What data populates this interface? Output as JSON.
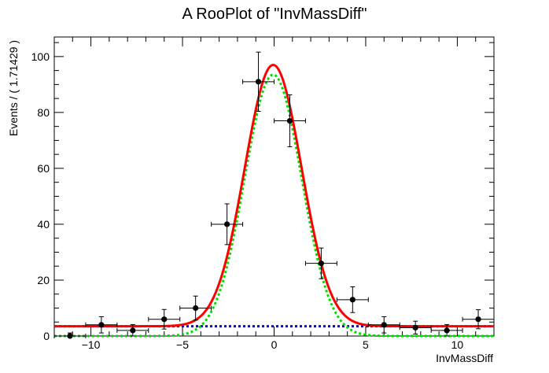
{
  "chart_data": {
    "type": "line",
    "title": "A RooPlot of \"InvMassDiff\"",
    "xlabel": "InvMassDiff",
    "ylabel": "Events / ( 1.71429 )",
    "xlim": [
      -12,
      12
    ],
    "ylim": [
      0,
      107
    ],
    "x_ticks": [
      -10,
      -5,
      0,
      5,
      10
    ],
    "y_ticks": [
      0,
      20,
      40,
      60,
      80,
      100
    ],
    "bin_width": 1.71429,
    "data_points": {
      "x": [
        -11.143,
        -9.429,
        -7.714,
        -6.0,
        -4.286,
        -2.571,
        -0.857,
        0.857,
        2.571,
        4.286,
        6.0,
        7.714,
        9.429,
        11.143
      ],
      "y": [
        0,
        4,
        2,
        6,
        10,
        40,
        91,
        77,
        26,
        13,
        4,
        3,
        2,
        6
      ],
      "err": [
        1.1,
        2.9,
        2.1,
        3.5,
        4.3,
        7.3,
        10.6,
        9.3,
        5.5,
        4.6,
        2.9,
        2.3,
        2.1,
        3.4
      ]
    },
    "background_level": 3.5,
    "signal": {
      "mean": -0.05,
      "sigma": 1.55,
      "amplitude": 93.5
    },
    "series": [
      {
        "color": "#ff0000",
        "style": "solid"
      },
      {
        "color": "#00dd00",
        "style": "dotted"
      },
      {
        "color": "#0000ff",
        "style": "dotted"
      }
    ]
  }
}
